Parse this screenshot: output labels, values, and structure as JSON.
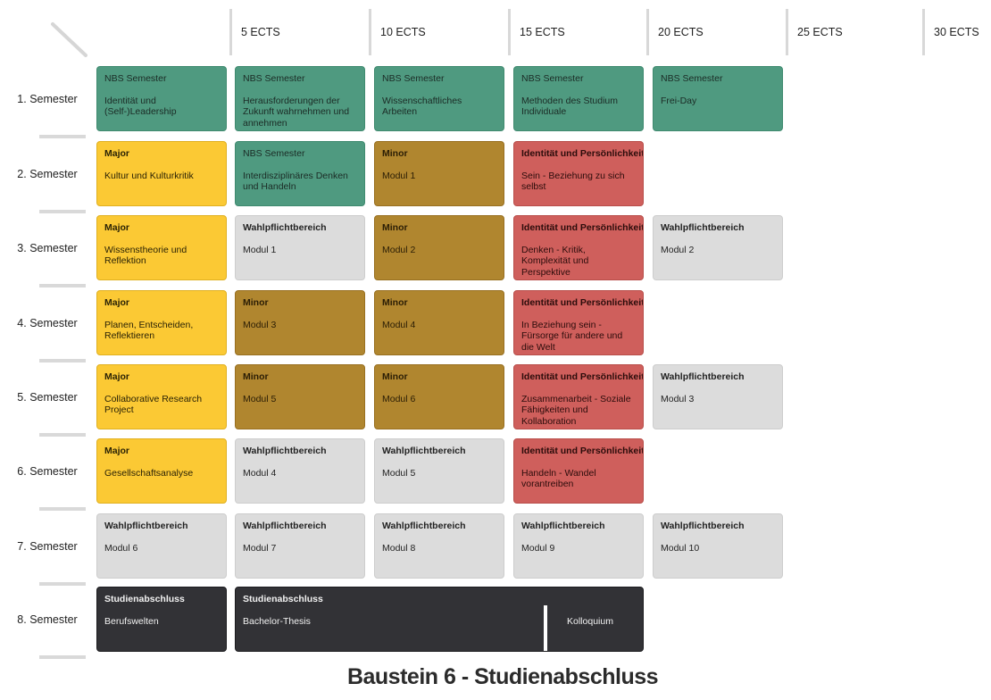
{
  "columns": [
    "5 ECTS",
    "10 ECTS",
    "15 ECTS",
    "20 ECTS",
    "25 ECTS",
    "30 ECTS"
  ],
  "semesters": [
    "1. Semester",
    "2. Semester",
    "3. Semester",
    "4. Semester",
    "5. Semester",
    "6. Semester",
    "7. Semester",
    "8. Semester"
  ],
  "colors": {
    "nbs": "#4f9a80",
    "major": "#fbc934",
    "minor": "#b0862f",
    "identitaet": "#cf5f5c",
    "wahlpflicht": "#dcdcdc",
    "abschluss": "#323236"
  },
  "rows": [
    [
      {
        "type": "nbs",
        "title": "NBS Semester",
        "sub": "Identität und (Self-)Leadership"
      },
      {
        "type": "nbs",
        "title": "NBS Semester",
        "sub": "Herausforderungen der Zukunft wahrnehmen und annehmen"
      },
      {
        "type": "nbs",
        "title": "NBS Semester",
        "sub": "Wissenschaftliches Arbeiten"
      },
      {
        "type": "nbs",
        "title": "NBS Semester",
        "sub": "Methoden des Studium Individuale"
      },
      {
        "type": "nbs",
        "title": "NBS Semester",
        "sub": "Frei-Day"
      }
    ],
    [
      {
        "type": "major",
        "title": "Major",
        "sub": "Kultur und Kulturkritik"
      },
      {
        "type": "nbs",
        "title": "NBS Semester",
        "sub": "Interdisziplinäres Denken und Handeln"
      },
      {
        "type": "minor",
        "title": "Minor",
        "sub": "Modul 1"
      },
      {
        "type": "identitaet",
        "title": "Identität und Persönlichkeit",
        "sub": "Sein - Beziehung zu sich selbst"
      }
    ],
    [
      {
        "type": "major",
        "title": "Major",
        "sub": "Wissenstheorie und Reflektion"
      },
      {
        "type": "wahlpflicht",
        "title": "Wahlpflichtbereich",
        "sub": "Modul 1"
      },
      {
        "type": "minor",
        "title": "Minor",
        "sub": "Modul 2"
      },
      {
        "type": "identitaet",
        "title": "Identität und Persönlichkeit",
        "sub": "Denken - Kritik, Komplexität und Perspektive"
      },
      {
        "type": "wahlpflicht",
        "title": "Wahlpflichtbereich",
        "sub": "Modul 2"
      }
    ],
    [
      {
        "type": "major",
        "title": "Major",
        "sub": "Planen, Entscheiden, Reflektieren"
      },
      {
        "type": "minor",
        "title": "Minor",
        "sub": "Modul 3"
      },
      {
        "type": "minor",
        "title": "Minor",
        "sub": "Modul 4"
      },
      {
        "type": "identitaet",
        "title": "Identität und Persönlichkeit",
        "sub": "In Beziehung sein - Fürsorge für andere und die Welt"
      }
    ],
    [
      {
        "type": "major",
        "title": "Major",
        "sub": "Collaborative Research Project"
      },
      {
        "type": "minor",
        "title": "Minor",
        "sub": "Modul 5"
      },
      {
        "type": "minor",
        "title": "Minor",
        "sub": "Modul 6"
      },
      {
        "type": "identitaet",
        "title": "Identität und Persönlichkeit",
        "sub": "Zusammenarbeit - Soziale Fähigkeiten und Kollaboration"
      },
      {
        "type": "wahlpflicht",
        "title": "Wahlpflichtbereich",
        "sub": "Modul 3"
      }
    ],
    [
      {
        "type": "major",
        "title": "Major",
        "sub": "Gesellschaftsanalyse"
      },
      {
        "type": "wahlpflicht",
        "title": "Wahlpflichtbereich",
        "sub": "Modul 4"
      },
      {
        "type": "wahlpflicht",
        "title": "Wahlpflichtbereich",
        "sub": "Modul 5"
      },
      {
        "type": "identitaet",
        "title": "Identität und Persönlichkeit",
        "sub": "Handeln - Wandel vorantreiben"
      }
    ],
    [
      {
        "type": "wahlpflicht",
        "title": "Wahlpflichtbereich",
        "sub": "Modul 6"
      },
      {
        "type": "wahlpflicht",
        "title": "Wahlpflichtbereich",
        "sub": "Modul 7"
      },
      {
        "type": "wahlpflicht",
        "title": "Wahlpflichtbereich",
        "sub": "Modul 8"
      },
      {
        "type": "wahlpflicht",
        "title": "Wahlpflichtbereich",
        "sub": "Modul 9"
      },
      {
        "type": "wahlpflicht",
        "title": "Wahlpflichtbereich",
        "sub": "Modul 10"
      }
    ]
  ],
  "final_row": {
    "first": {
      "title": "Studienabschluss",
      "sub": "Berufswelten"
    },
    "thesis": {
      "title": "Studienabschluss",
      "sub": "Bachelor-Thesis",
      "extra": "Kolloquium"
    }
  },
  "footer_title": "Baustein 6 - Studienabschluss"
}
